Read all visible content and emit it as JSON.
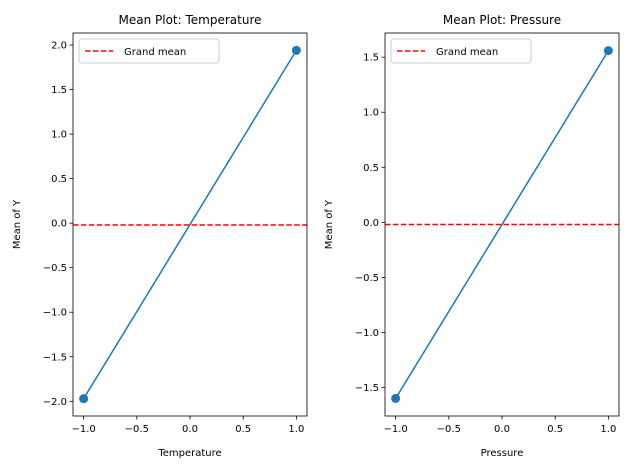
{
  "chart_data": [
    {
      "type": "line",
      "title": "Mean Plot: Temperature",
      "xlabel": "Temperature",
      "ylabel": "Mean of Y",
      "x": [
        -1.0,
        1.0
      ],
      "series": [
        {
          "values": [
            -1.97,
            1.94
          ],
          "color": "#1f77b4",
          "marker": "circle"
        }
      ],
      "grand_mean": {
        "label": "Grand mean",
        "value": -0.02,
        "color": "#ff0000",
        "style": "dashed"
      },
      "xlim": [
        -1.1,
        1.1
      ],
      "ylim": [
        -2.165,
        2.135
      ],
      "xticks": [
        -1.0,
        -0.5,
        0.0,
        0.5,
        1.0
      ],
      "xtick_labels": [
        "−1.0",
        "−0.5",
        "0.0",
        "0.5",
        "1.0"
      ],
      "yticks": [
        -2.0,
        -1.5,
        -1.0,
        -0.5,
        0.0,
        0.5,
        1.0,
        1.5,
        2.0
      ],
      "ytick_labels": [
        "−2.0",
        "−1.5",
        "−1.0",
        "−0.5",
        "0.0",
        "0.5",
        "1.0",
        "1.5",
        "2.0"
      ],
      "legend_position": "top-left",
      "grid": false
    },
    {
      "type": "line",
      "title": "Mean Plot: Pressure",
      "xlabel": "Pressure",
      "ylabel": "Mean of Y",
      "x": [
        -1.0,
        1.0
      ],
      "series": [
        {
          "values": [
            -1.6,
            1.56
          ],
          "color": "#1f77b4",
          "marker": "circle"
        }
      ],
      "grand_mean": {
        "label": "Grand mean",
        "value": -0.02,
        "color": "#ff0000",
        "style": "dashed"
      },
      "xlim": [
        -1.1,
        1.1
      ],
      "ylim": [
        -1.76,
        1.72
      ],
      "xticks": [
        -1.0,
        -0.5,
        0.0,
        0.5,
        1.0
      ],
      "xtick_labels": [
        "−1.0",
        "−0.5",
        "0.0",
        "0.5",
        "1.0"
      ],
      "yticks": [
        -1.5,
        -1.0,
        -0.5,
        0.0,
        0.5,
        1.0,
        1.5
      ],
      "ytick_labels": [
        "−1.5",
        "−1.0",
        "−0.5",
        "0.0",
        "0.5",
        "1.0",
        "1.5"
      ],
      "legend_position": "top-left",
      "grid": false
    }
  ]
}
